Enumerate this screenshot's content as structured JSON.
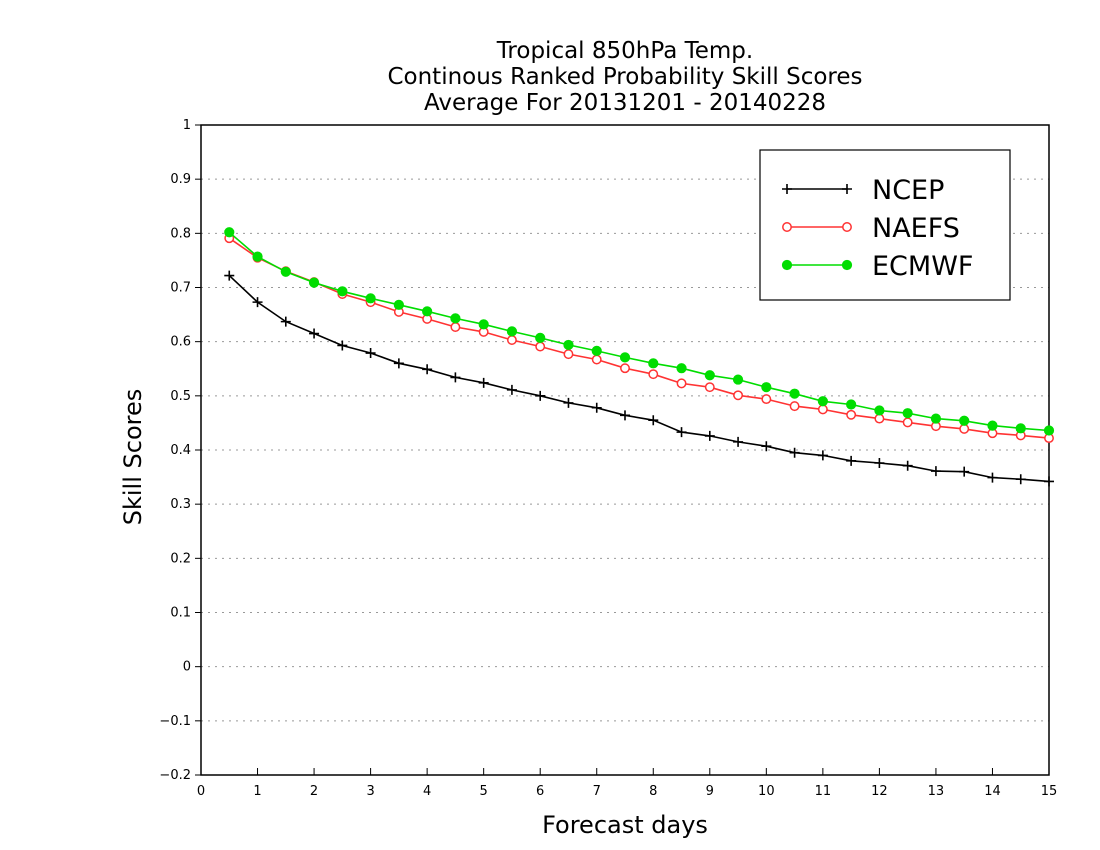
{
  "chart_data": {
    "type": "line",
    "title_lines": [
      "Tropical 850hPa Temp.",
      "Continous Ranked Probability Skill Scores",
      "Average For 20131201 - 20140228"
    ],
    "xlabel": "Forecast days",
    "ylabel": "Skill Scores",
    "xlim": [
      0,
      15
    ],
    "ylim": [
      -0.2,
      1
    ],
    "xticks": [
      "0",
      "1",
      "2",
      "3",
      "4",
      "5",
      "6",
      "7",
      "8",
      "9",
      "10",
      "11",
      "12",
      "13",
      "14",
      "15"
    ],
    "yticks": [
      "−0.2",
      "−0.1",
      "0",
      "0.1",
      "0.2",
      "0.3",
      "0.4",
      "0.5",
      "0.6",
      "0.7",
      "0.8",
      "0.9",
      "1"
    ],
    "grid": "horizontal dotted",
    "legend_position": "top-right",
    "x": [
      0.5,
      1,
      1.5,
      2,
      2.5,
      3,
      3.5,
      4,
      4.5,
      5,
      5.5,
      6,
      6.5,
      7,
      7.5,
      8,
      8.5,
      9,
      9.5,
      10,
      10.5,
      11,
      11.5,
      12,
      12.5,
      13,
      13.5,
      14,
      14.5,
      15
    ],
    "series": [
      {
        "name": "NCEP",
        "color": "#000000",
        "marker": "plus",
        "values": [
          0.722,
          0.673,
          0.637,
          0.615,
          0.593,
          0.579,
          0.56,
          0.549,
          0.534,
          0.524,
          0.511,
          0.5,
          0.487,
          0.478,
          0.464,
          0.455,
          0.433,
          0.426,
          0.415,
          0.407,
          0.395,
          0.39,
          0.38,
          0.376,
          0.371,
          0.361,
          0.36,
          0.349,
          0.346,
          0.342
        ]
      },
      {
        "name": "NAEFS",
        "color": "#ff3333",
        "marker": "open-circle",
        "values": [
          0.791,
          0.755,
          0.73,
          0.71,
          0.688,
          0.673,
          0.655,
          0.642,
          0.627,
          0.618,
          0.603,
          0.591,
          0.577,
          0.567,
          0.551,
          0.54,
          0.523,
          0.516,
          0.501,
          0.494,
          0.481,
          0.475,
          0.465,
          0.458,
          0.451,
          0.444,
          0.439,
          0.431,
          0.427,
          0.422
        ]
      },
      {
        "name": "ECMWF",
        "color": "#00dd00",
        "marker": "filled-circle",
        "values": [
          0.802,
          0.757,
          0.729,
          0.709,
          0.693,
          0.68,
          0.668,
          0.656,
          0.643,
          0.632,
          0.619,
          0.607,
          0.594,
          0.583,
          0.571,
          0.56,
          0.551,
          0.538,
          0.53,
          0.516,
          0.504,
          0.49,
          0.484,
          0.473,
          0.468,
          0.458,
          0.454,
          0.445,
          0.44,
          0.436
        ]
      }
    ]
  }
}
